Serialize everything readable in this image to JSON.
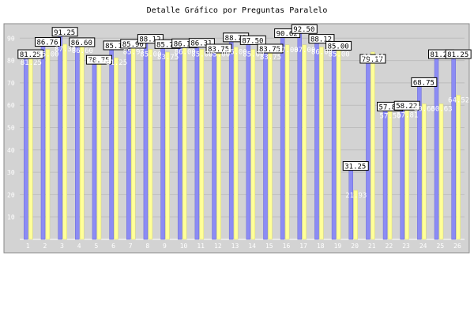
{
  "chart_data": {
    "type": "bar",
    "title": "Detalle Gráfico por Preguntas Paralelo",
    "xlabel": "",
    "ylabel": "",
    "ylim": [
      0,
      100
    ],
    "yticks": [
      10,
      20,
      30,
      40,
      50,
      60,
      70,
      80,
      90
    ],
    "grid": true,
    "legend": "none",
    "categories": [
      "1",
      "2",
      "3",
      "4",
      "5",
      "6",
      "7",
      "8",
      "9",
      "10",
      "11",
      "12",
      "13",
      "14",
      "15",
      "16",
      "17",
      "18",
      "19",
      "20",
      "21",
      "22",
      "23",
      "24",
      "25",
      "26"
    ],
    "series": [
      {
        "values": [
          81.25,
          86.76,
          91.25,
          86.6,
          78.75,
          85.18,
          85.9,
          88.12,
          85.76,
          86.1,
          86.31,
          83.75,
          88.75,
          87.5,
          83.75,
          90.62,
          92.5,
          88.12,
          85.0,
          31.25,
          79.17,
          57.81,
          58.22,
          68.75,
          81.25,
          81.25
        ]
      },
      {
        "values": [
          81.25,
          85.0,
          87.3,
          86.6,
          81.88,
          81.25,
          85.97,
          85.0,
          83.75,
          86.0,
          85.0,
          85.0,
          86.0,
          85.0,
          83.75,
          87.0,
          87.0,
          86.0,
          85.0,
          21.93,
          83.76,
          57.5,
          57.81,
          60.63,
          60.63,
          64.52
        ]
      }
    ],
    "colors": [
      "#8c8cf4",
      "#ffff99"
    ],
    "background": "#d3d3d3"
  }
}
